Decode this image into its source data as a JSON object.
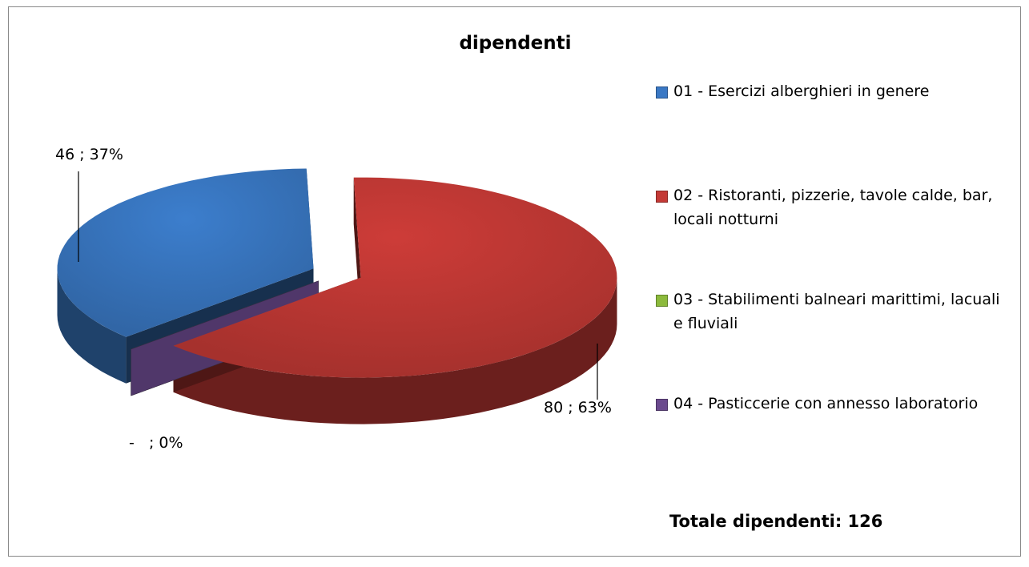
{
  "chart_data": {
    "type": "pie3d",
    "title": "dipendenti",
    "categories": [
      "01 - Esercizi alberghieri in genere",
      "02 - Ristoranti, pizzerie, tavole calde, bar, locali notturni",
      "03 - Stabilimenti balneari marittimi, lacuali e fluviali",
      "04 - Pasticcerie con annesso laboratorio"
    ],
    "values": [
      46,
      80,
      0,
      0
    ],
    "value_labels": [
      "46 ; 37%",
      "80 ; 63%",
      null,
      "-   ; 0%"
    ],
    "colors": [
      "#3a78c4",
      "#c43a36",
      "#8cba3c",
      "#6b4a8e"
    ],
    "legend": "right",
    "annotations": [
      "Totale dipendenti: 126"
    ]
  }
}
